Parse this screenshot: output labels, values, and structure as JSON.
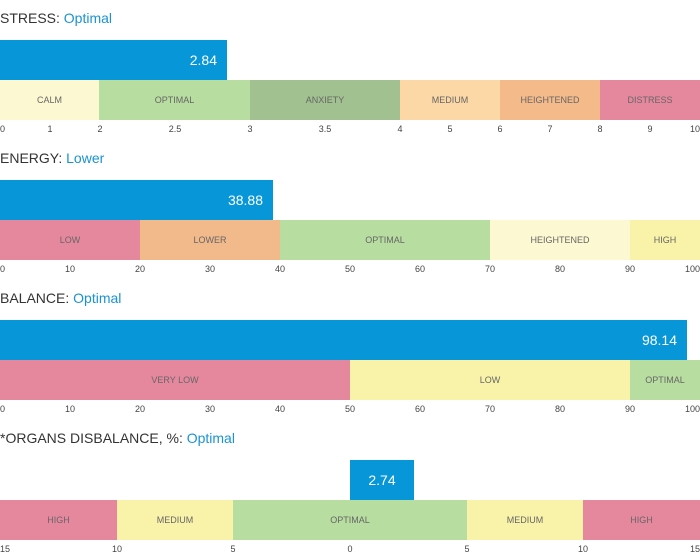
{
  "colors": {
    "accent": "#1a93d3",
    "bar": "#0796d7",
    "calm": "#fcf8d2",
    "optimal": "#b8dda0",
    "anxiety": "#a1c290",
    "medium": "#fbd8a5",
    "heightened": "#f4ba8a",
    "distress": "#e6889d",
    "pink": "#e6889d",
    "orange": "#f2b98a",
    "green": "#b8dda0",
    "lightyellow": "#fcf8d2",
    "yellow": "#f9f3a9"
  },
  "metrics": [
    {
      "label": "STRESS:",
      "status": "Optimal",
      "value": 2.84,
      "value_text": "2.84",
      "scale": {
        "min": 0,
        "max": 10
      },
      "zones": [
        {
          "label": "CALM",
          "from": 0,
          "to": 2,
          "color": "#fcf8d2"
        },
        {
          "label": "OPTIMAL",
          "from": 2,
          "to": 3,
          "color": "#b8dda0"
        },
        {
          "label": "ANXIETY",
          "from": 3,
          "to": 4,
          "color": "#a1c290"
        },
        {
          "label": "MEDIUM",
          "from": 4,
          "to": 6,
          "color": "#fbd8a5"
        },
        {
          "label": "HEIGHTENED",
          "from": 6,
          "to": 8,
          "color": "#f4ba8a"
        },
        {
          "label": "DISTRESS",
          "from": 8,
          "to": 10,
          "color": "#e6889d"
        }
      ],
      "ticks": [
        "0",
        "1",
        "2",
        "2.5",
        "3",
        "3.5",
        "4",
        "5",
        "6",
        "7",
        "8",
        "9",
        "10"
      ]
    },
    {
      "label": "ENERGY:",
      "status": "Lower",
      "value": 38.88,
      "value_text": "38.88",
      "scale": {
        "min": 0,
        "max": 100
      },
      "zones": [
        {
          "label": "LOW",
          "from": 0,
          "to": 20,
          "color": "#e6889d"
        },
        {
          "label": "LOWER",
          "from": 20,
          "to": 40,
          "color": "#f2b98a"
        },
        {
          "label": "OPTIMAL",
          "from": 40,
          "to": 70,
          "color": "#b8dda0"
        },
        {
          "label": "HEIGHTENED",
          "from": 70,
          "to": 90,
          "color": "#fcf8d2"
        },
        {
          "label": "HIGH",
          "from": 90,
          "to": 100,
          "color": "#f9f3a9"
        }
      ],
      "ticks": [
        "0",
        "10",
        "20",
        "30",
        "40",
        "50",
        "60",
        "70",
        "80",
        "90",
        "100"
      ]
    },
    {
      "label": "BALANCE:",
      "status": "Optimal",
      "value": 98.14,
      "value_text": "98.14",
      "scale": {
        "min": 0,
        "max": 100
      },
      "zones": [
        {
          "label": "VERY LOW",
          "from": 0,
          "to": 50,
          "color": "#e6889d"
        },
        {
          "label": "LOW",
          "from": 50,
          "to": 90,
          "color": "#f9f3a9"
        },
        {
          "label": "OPTIMAL",
          "from": 90,
          "to": 100,
          "color": "#b8dda0"
        }
      ],
      "ticks": [
        "0",
        "10",
        "20",
        "30",
        "40",
        "50",
        "60",
        "70",
        "80",
        "90",
        "100"
      ]
    },
    {
      "label": "*ORGANS DISBALANCE, %:",
      "status": "Optimal",
      "value": 2.74,
      "value_text": "2.74",
      "scale": {
        "min": 0,
        "max": 15,
        "mirrored": true
      },
      "zones": [
        {
          "label": "HIGH",
          "from": 15,
          "to": 10,
          "color": "#e6889d"
        },
        {
          "label": "MEDIUM",
          "from": 10,
          "to": 5,
          "color": "#f9f3a9"
        },
        {
          "label": "OPTIMAL",
          "from": 5,
          "to": 5,
          "color": "#b8dda0"
        },
        {
          "label": "MEDIUM",
          "from": 5,
          "to": 10,
          "color": "#f9f3a9"
        },
        {
          "label": "HIGH",
          "from": 10,
          "to": 15,
          "color": "#e6889d"
        }
      ],
      "ticks": [
        "15",
        "10",
        "5",
        "0",
        "5",
        "10",
        "15"
      ]
    }
  ]
}
